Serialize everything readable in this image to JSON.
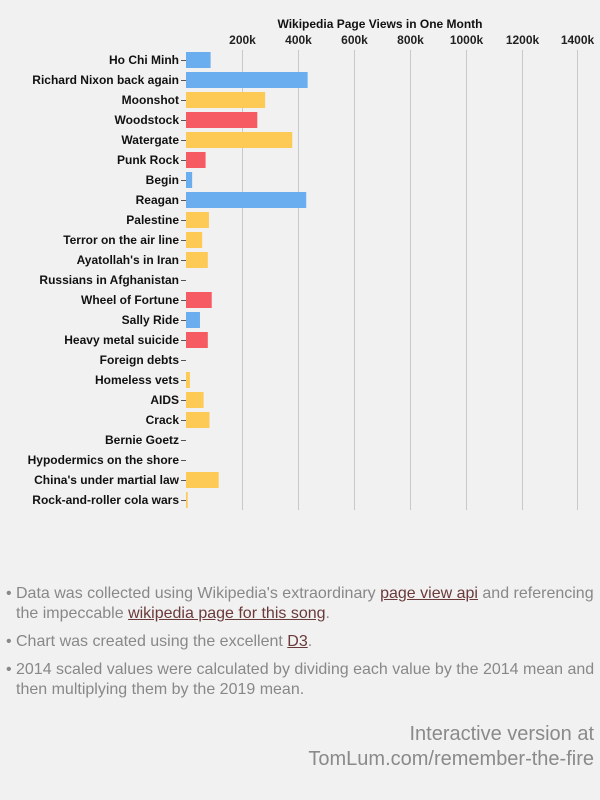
{
  "chart_data": {
    "type": "bar",
    "orientation": "horizontal",
    "title": "Wikipedia Page Views in One Month",
    "x_ticks": [
      "200k",
      "400k",
      "600k",
      "800k",
      "1000k",
      "1200k",
      "1400k"
    ],
    "x_tick_values": [
      200000,
      400000,
      600000,
      800000,
      1000000,
      1200000,
      1400000
    ],
    "xlim": [
      0,
      1470000
    ],
    "grid": true,
    "axis_position": "top",
    "colors": {
      "blue": "#6aaef0",
      "yellow": "#fdca55",
      "red": "#f65a62"
    },
    "categories": [
      "Ho Chi Minh",
      "Richard Nixon back again",
      "Moonshot",
      "Woodstock",
      "Watergate",
      "Punk Rock",
      "Begin",
      "Reagan",
      "Palestine",
      "Terror on the air line",
      "Ayatollah's in Iran",
      "Russians in Afghanistan",
      "Wheel of Fortune",
      "Sally Ride",
      "Heavy metal suicide",
      "Foreign debts",
      "Homeless vets",
      "AIDS",
      "Crack",
      "Bernie Goetz",
      "Hypodermics on the shore",
      "China's under martial law",
      "Rock-and-roller cola wars"
    ],
    "values": [
      88000,
      435000,
      283000,
      255000,
      380000,
      70000,
      22000,
      430000,
      82000,
      58000,
      78000,
      0,
      92000,
      50000,
      78000,
      0,
      14000,
      63000,
      84000,
      0,
      0,
      117000,
      6000
    ],
    "bar_colors": [
      "blue",
      "blue",
      "yellow",
      "red",
      "yellow",
      "red",
      "blue",
      "blue",
      "yellow",
      "yellow",
      "yellow",
      "yellow",
      "red",
      "blue",
      "red",
      "yellow",
      "yellow",
      "yellow",
      "yellow",
      "yellow",
      "yellow",
      "yellow",
      "yellow"
    ]
  },
  "notes": {
    "bullet": "•",
    "item1_pre": "Data was collected using Wikipedia's extraordinary ",
    "item1_link1": "page view api",
    "item1_mid": " and referencing the impeccable ",
    "item1_link2": "wikipedia page for this song",
    "item1_post": ".",
    "item2_pre": "Chart was created using the excellent ",
    "item2_link": "D3",
    "item2_post": ".",
    "item3": "2014 scaled values were calculated by dividing each value by the 2014 mean and then multiplying them by the 2019 mean."
  },
  "footer": {
    "line1": "Interactive version at",
    "line2": "TomLum.com/remember-the-fire"
  }
}
